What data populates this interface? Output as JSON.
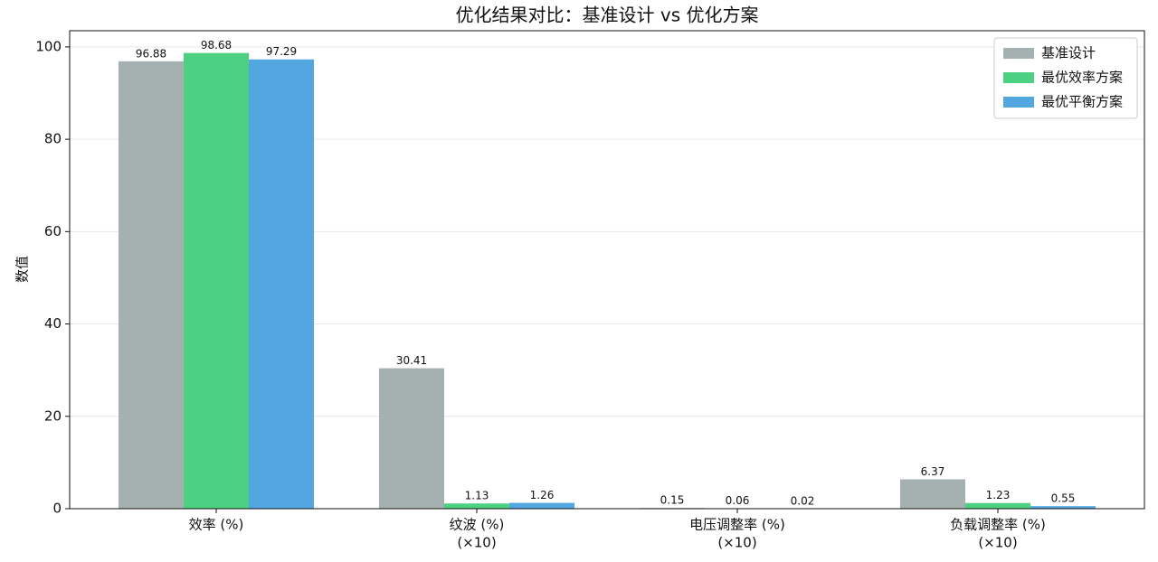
{
  "chart_data": {
    "type": "bar",
    "title": "优化结果对比：基准设计 vs 优化方案",
    "y_label": "数值",
    "categories": [
      [
        "效率 (%)"
      ],
      [
        "纹波 (%)",
        "(×10)"
      ],
      [
        "电压调整率 (%)",
        "(×10)"
      ],
      [
        "负载调整率 (%)",
        "(×10)"
      ]
    ],
    "series": [
      {
        "name": "基准设计",
        "color": "#a5b1b0",
        "values": [
          96.88,
          30.41,
          0.15,
          6.37
        ]
      },
      {
        "name": "最优效率方案",
        "color": "#4cd182",
        "values": [
          98.68,
          1.13,
          0.06,
          1.23
        ]
      },
      {
        "name": "最优平衡方案",
        "color": "#52a7e0",
        "values": [
          97.29,
          1.26,
          0.02,
          0.55
        ]
      }
    ],
    "ylim": [
      0,
      103.5
    ],
    "yticks": [
      0,
      20,
      40,
      60,
      80,
      100
    ],
    "grid": true,
    "legend": "upper right"
  }
}
